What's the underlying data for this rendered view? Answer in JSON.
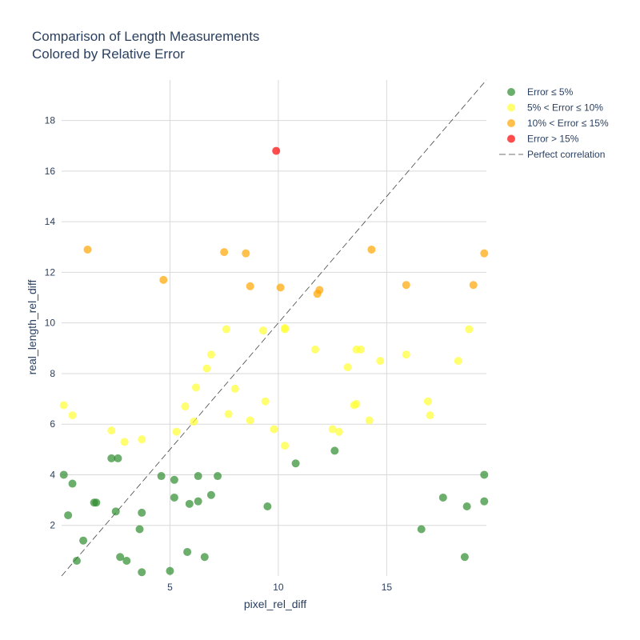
{
  "chart_data": {
    "type": "scatter",
    "title": "Comparison of Length Measurements",
    "subtitle": "Colored by Relative Error",
    "xlabel": "pixel_rel_diff",
    "ylabel": "real_length_rel_diff",
    "xlim": [
      0,
      19.6
    ],
    "ylim": [
      0,
      19.6
    ],
    "x_ticks": [
      5,
      10,
      15
    ],
    "y_ticks": [
      2,
      4,
      6,
      8,
      10,
      12,
      14,
      16,
      18
    ],
    "grid": true,
    "legend_position": "top-right",
    "series": [
      {
        "name": "Error ≤ 5%",
        "color": "#2e8b2e",
        "points": [
          [
            0.1,
            4.0
          ],
          [
            0.5,
            3.65
          ],
          [
            0.3,
            2.4
          ],
          [
            0.7,
            0.6
          ],
          [
            1.0,
            1.4
          ],
          [
            1.5,
            2.9
          ],
          [
            1.6,
            2.9
          ],
          [
            2.3,
            4.65
          ],
          [
            2.6,
            4.65
          ],
          [
            2.5,
            2.55
          ],
          [
            2.7,
            0.75
          ],
          [
            3.0,
            0.6
          ],
          [
            3.7,
            2.5
          ],
          [
            3.6,
            1.85
          ],
          [
            3.7,
            0.15
          ],
          [
            4.6,
            3.95
          ],
          [
            5.0,
            0.2
          ],
          [
            5.2,
            3.8
          ],
          [
            5.2,
            3.1
          ],
          [
            5.8,
            0.95
          ],
          [
            5.9,
            2.85
          ],
          [
            6.3,
            2.95
          ],
          [
            6.3,
            3.95
          ],
          [
            6.6,
            0.75
          ],
          [
            6.9,
            3.2
          ],
          [
            7.2,
            3.95
          ],
          [
            9.5,
            2.75
          ],
          [
            10.8,
            4.45
          ],
          [
            12.6,
            4.95
          ],
          [
            16.6,
            1.85
          ],
          [
            17.6,
            3.1
          ],
          [
            18.6,
            0.75
          ],
          [
            18.7,
            2.75
          ],
          [
            19.5,
            4.0
          ],
          [
            19.5,
            2.95
          ]
        ]
      },
      {
        "name": "5% < Error ≤ 10%",
        "color": "#ffff33",
        "points": [
          [
            0.1,
            6.75
          ],
          [
            0.5,
            6.35
          ],
          [
            2.3,
            5.75
          ],
          [
            2.9,
            5.3
          ],
          [
            3.7,
            5.4
          ],
          [
            5.3,
            5.7
          ],
          [
            5.7,
            6.7
          ],
          [
            6.1,
            6.1
          ],
          [
            6.2,
            7.45
          ],
          [
            6.7,
            8.2
          ],
          [
            6.9,
            8.75
          ],
          [
            7.6,
            9.75
          ],
          [
            7.7,
            6.4
          ],
          [
            8.0,
            7.4
          ],
          [
            8.7,
            6.15
          ],
          [
            9.3,
            9.7
          ],
          [
            9.4,
            6.9
          ],
          [
            9.8,
            5.8
          ],
          [
            10.3,
            5.15
          ],
          [
            10.3,
            9.8
          ],
          [
            10.3,
            9.75
          ],
          [
            11.7,
            8.95
          ],
          [
            12.5,
            5.8
          ],
          [
            12.8,
            5.7
          ],
          [
            13.2,
            8.25
          ],
          [
            13.5,
            6.75
          ],
          [
            13.6,
            6.8
          ],
          [
            13.6,
            8.95
          ],
          [
            13.8,
            8.95
          ],
          [
            14.2,
            6.15
          ],
          [
            14.7,
            8.5
          ],
          [
            15.9,
            8.75
          ],
          [
            16.9,
            6.9
          ],
          [
            17.0,
            6.35
          ],
          [
            18.3,
            8.5
          ],
          [
            18.8,
            9.75
          ]
        ]
      },
      {
        "name": "10% < Error ≤ 15%",
        "color": "#ffa500",
        "points": [
          [
            1.2,
            12.9
          ],
          [
            4.7,
            11.7
          ],
          [
            7.5,
            12.8
          ],
          [
            8.5,
            12.75
          ],
          [
            8.7,
            11.45
          ],
          [
            10.1,
            11.4
          ],
          [
            11.8,
            11.15
          ],
          [
            11.9,
            11.3
          ],
          [
            14.3,
            12.9
          ],
          [
            15.9,
            11.5
          ],
          [
            19.0,
            11.5
          ],
          [
            19.5,
            12.75
          ]
        ]
      },
      {
        "name": "Error > 15%",
        "color": "#ff0000",
        "points": [
          [
            9.9,
            16.8
          ]
        ]
      }
    ],
    "reference_line": {
      "name": "Perfect correlation",
      "color": "#444444",
      "x": [
        0,
        19.6
      ],
      "y": [
        0,
        19.6
      ]
    }
  }
}
